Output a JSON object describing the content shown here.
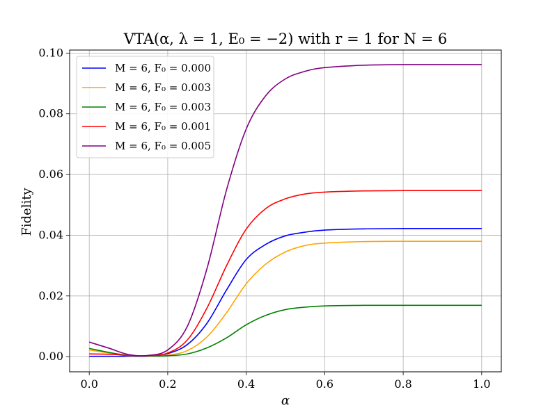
{
  "chart_data": {
    "type": "line",
    "title": "VTA(α, λ = 1,  E₀ = −2) with r = 1 for N = 6",
    "xlabel": "α",
    "ylabel": "Fidelity",
    "xlim": [
      -0.05,
      1.05
    ],
    "ylim": [
      -0.005,
      0.101
    ],
    "xticks": [
      0.0,
      0.2,
      0.4,
      0.6,
      0.8,
      1.0
    ],
    "xtick_labels": [
      "0.0",
      "0.2",
      "0.4",
      "0.6",
      "0.8",
      "1.0"
    ],
    "yticks": [
      0.0,
      0.02,
      0.04,
      0.06,
      0.08,
      0.1
    ],
    "ytick_labels": [
      "0.00",
      "0.02",
      "0.04",
      "0.06",
      "0.08",
      "0.10"
    ],
    "grid": true,
    "legend_position": "top-left",
    "series": [
      {
        "name": "M = 6, F₀ =  0.000",
        "color": "#0000ff",
        "x": [
          0.0,
          0.05,
          0.1,
          0.15,
          0.2,
          0.25,
          0.3,
          0.35,
          0.4,
          0.45,
          0.5,
          0.55,
          0.6,
          0.7,
          0.8,
          0.9,
          1.0
        ],
        "y": [
          0.0001,
          0.0001,
          0.0001,
          0.0002,
          0.001,
          0.004,
          0.011,
          0.022,
          0.032,
          0.037,
          0.0398,
          0.041,
          0.0417,
          0.0421,
          0.0422,
          0.0422,
          0.0422
        ]
      },
      {
        "name": "M = 6, F₀ =  0.003",
        "color": "#ffa500",
        "x": [
          0.0,
          0.05,
          0.1,
          0.15,
          0.2,
          0.25,
          0.3,
          0.35,
          0.4,
          0.45,
          0.5,
          0.55,
          0.6,
          0.7,
          0.8,
          0.9,
          1.0
        ],
        "y": [
          0.0022,
          0.0012,
          0.0003,
          0.0002,
          0.0005,
          0.002,
          0.0065,
          0.0145,
          0.024,
          0.0305,
          0.0345,
          0.0366,
          0.0374,
          0.0379,
          0.038,
          0.038,
          0.038
        ]
      },
      {
        "name": "M = 6, F₀ =  0.003",
        "color": "#008000",
        "x": [
          0.0,
          0.05,
          0.1,
          0.15,
          0.2,
          0.25,
          0.3,
          0.35,
          0.4,
          0.45,
          0.5,
          0.55,
          0.6,
          0.7,
          0.8,
          0.9,
          1.0
        ],
        "y": [
          0.0027,
          0.0014,
          0.0004,
          0.0002,
          0.0003,
          0.0009,
          0.0029,
          0.0062,
          0.0105,
          0.0136,
          0.0155,
          0.0163,
          0.0167,
          0.0169,
          0.0169,
          0.0169,
          0.0169
        ]
      },
      {
        "name": "M = 6, F₀ =  0.001",
        "color": "#ff0000",
        "x": [
          0.0,
          0.05,
          0.1,
          0.15,
          0.2,
          0.25,
          0.3,
          0.35,
          0.4,
          0.45,
          0.5,
          0.55,
          0.6,
          0.7,
          0.8,
          0.9,
          1.0
        ],
        "y": [
          0.0009,
          0.0008,
          0.0004,
          0.0003,
          0.0012,
          0.0055,
          0.016,
          0.03,
          0.042,
          0.0488,
          0.052,
          0.0536,
          0.0542,
          0.0546,
          0.0547,
          0.0547,
          0.0547
        ]
      },
      {
        "name": "M = 6, F₀ =  0.005",
        "color": "#800080",
        "x": [
          0.0,
          0.05,
          0.1,
          0.15,
          0.2,
          0.25,
          0.3,
          0.35,
          0.4,
          0.45,
          0.5,
          0.55,
          0.6,
          0.7,
          0.8,
          0.9,
          1.0
        ],
        "y": [
          0.0048,
          0.0028,
          0.0007,
          0.0004,
          0.0022,
          0.01,
          0.029,
          0.055,
          0.075,
          0.086,
          0.0915,
          0.094,
          0.0952,
          0.096,
          0.0962,
          0.0962,
          0.0962
        ]
      }
    ]
  }
}
